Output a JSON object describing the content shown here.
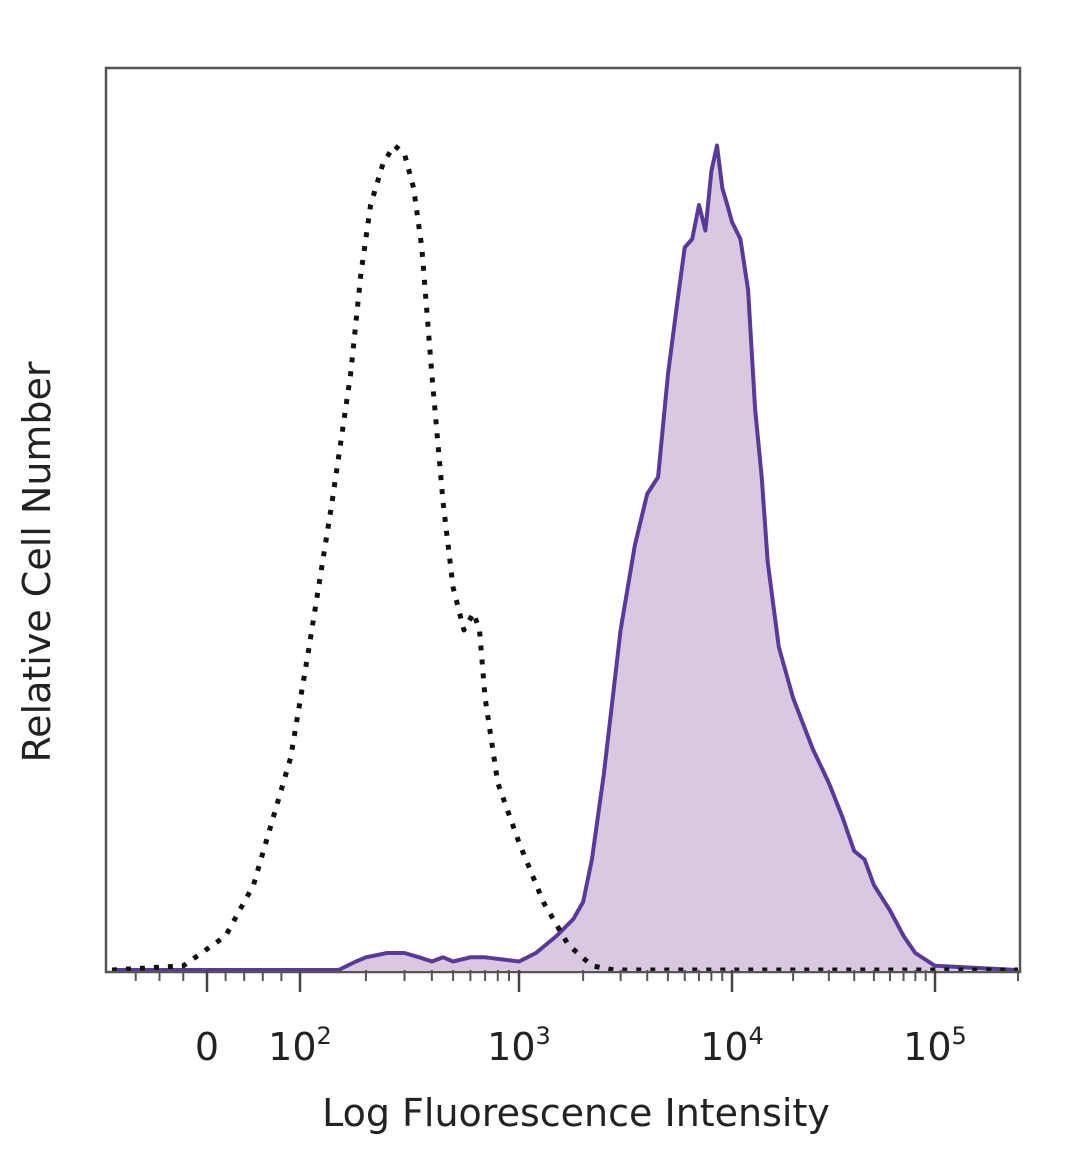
{
  "chart_data": {
    "type": "area",
    "xlabel": "Log Fluorescence Intensity",
    "ylabel": "Relative Cell Number",
    "x_scale": "biexponential",
    "xlim": [
      -80,
      200000
    ],
    "ylim": [
      0,
      100
    ],
    "x_ticks": [
      {
        "value": 0,
        "base": "0",
        "exp": ""
      },
      {
        "value": 100,
        "base": "10",
        "exp": "2"
      },
      {
        "value": 1000,
        "base": "10",
        "exp": "3"
      },
      {
        "value": 10000,
        "base": "10",
        "exp": "4"
      },
      {
        "value": 100000,
        "base": "10",
        "exp": "5"
      }
    ],
    "grid": false,
    "legend": "none",
    "series": [
      {
        "style": "dotted",
        "color": "#111111",
        "fill": "none",
        "x": [
          -80,
          -20,
          20,
          50,
          90,
          110,
          140,
          170,
          190,
          210,
          240,
          270,
          300,
          330,
          360,
          400,
          450,
          500,
          560,
          620,
          660,
          700,
          800,
          1000,
          1300,
          1700,
          2200,
          2800,
          3500,
          200000
        ],
        "y": [
          0,
          0.5,
          4,
          10,
          25,
          38,
          55,
          70,
          82,
          90,
          95,
          97,
          96,
          92,
          85,
          70,
          55,
          45,
          40,
          42,
          40,
          32,
          22,
          15,
          8,
          3,
          0.5,
          0,
          0,
          0
        ]
      },
      {
        "style": "solid",
        "color": "#5a3a99",
        "fill": "#d9c8e0",
        "x": [
          -80,
          150,
          180,
          200,
          250,
          300,
          350,
          400,
          450,
          500,
          600,
          700,
          1000,
          1200,
          1500,
          1800,
          2000,
          2200,
          2500,
          3000,
          3500,
          4000,
          4500,
          5000,
          5500,
          6000,
          6500,
          7000,
          7500,
          8000,
          8500,
          9000,
          9500,
          10000,
          11000,
          12000,
          13000,
          14000,
          15000,
          17000,
          20000,
          25000,
          30000,
          35000,
          40000,
          45000,
          50000,
          60000,
          70000,
          80000,
          100000,
          200000
        ],
        "y": [
          0,
          0,
          1,
          1.5,
          2,
          2,
          1.5,
          1,
          1.5,
          1,
          1.5,
          1.5,
          1,
          2,
          4,
          6,
          8,
          13,
          23,
          40,
          50,
          56,
          58,
          70,
          78,
          85,
          86,
          90,
          87,
          94,
          97,
          92,
          90,
          88,
          86,
          80,
          66,
          58,
          48,
          38,
          32,
          26,
          22,
          18,
          14,
          13,
          10,
          7,
          4,
          2,
          0.5,
          0
        ]
      }
    ]
  }
}
